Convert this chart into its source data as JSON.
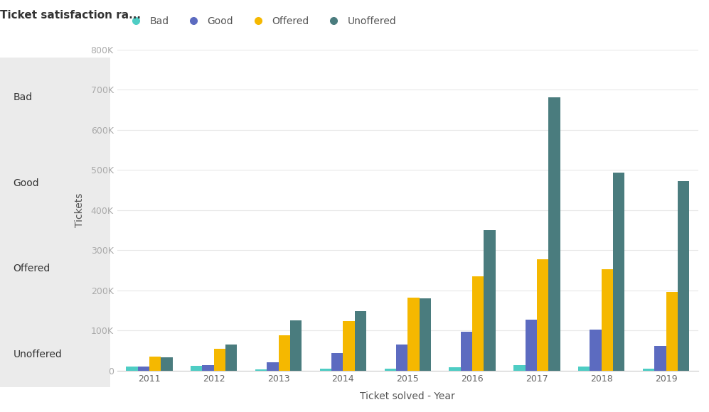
{
  "title": "Ticket satisfaction ra...",
  "ylabel": "Tickets",
  "xlabel": "Ticket solved - Year",
  "years": [
    2011,
    2012,
    2013,
    2014,
    2015,
    2016,
    2017,
    2018,
    2019
  ],
  "series": {
    "Bad": [
      10000,
      13000,
      3000,
      5000,
      5000,
      8000,
      15000,
      10000,
      5000
    ],
    "Good": [
      10000,
      14000,
      22000,
      45000,
      65000,
      97000,
      128000,
      103000,
      62000
    ],
    "Offered": [
      35000,
      55000,
      88000,
      123000,
      183000,
      235000,
      278000,
      253000,
      197000
    ],
    "Unoffered": [
      33000,
      65000,
      125000,
      148000,
      180000,
      350000,
      680000,
      493000,
      473000
    ]
  },
  "colors": {
    "Bad": "#4ecdc4",
    "Good": "#5c6bc0",
    "Offered": "#f5b800",
    "Unoffered": "#4a7c7e"
  },
  "legend_items": [
    "Bad",
    "Good",
    "Offered",
    "Unoffered"
  ],
  "ylim": [
    0,
    800000
  ],
  "yticks": [
    0,
    100000,
    200000,
    300000,
    400000,
    500000,
    600000,
    700000,
    800000
  ],
  "background_color": "#ffffff",
  "panel_color": "#ebebeb",
  "title_fontsize": 11,
  "axis_label_fontsize": 10,
  "tick_fontsize": 9,
  "legend_fontsize": 10,
  "bar_width": 0.18
}
